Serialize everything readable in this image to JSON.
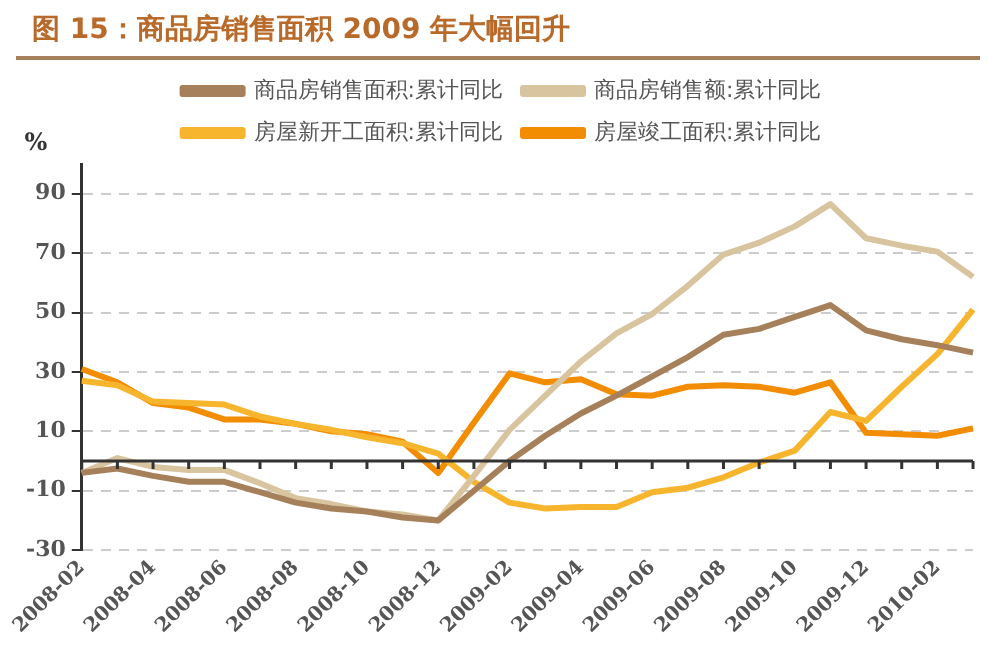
{
  "chart_data": {
    "type": "line",
    "title": "图 15：商品房销售面积 2009 年大幅回升",
    "ylabel": "%",
    "categories": [
      "2008-02",
      null,
      "2008-04",
      null,
      "2008-06",
      null,
      "2008-08",
      null,
      "2008-10",
      null,
      "2008-12",
      null,
      "2009-02",
      null,
      "2009-04",
      null,
      "2009-06",
      null,
      "2009-08",
      null,
      "2009-10",
      null,
      "2009-12",
      null,
      "2010-02",
      null
    ],
    "series": [
      {
        "name": "商品房销售面积:累计同比",
        "color": "#a5805a",
        "values": [
          -4,
          -2.5,
          -5,
          -7,
          -7,
          -10.5,
          -14,
          -16,
          -17,
          -19,
          -20,
          -10,
          0,
          8.5,
          16,
          22,
          28.5,
          35,
          42.5,
          44.5,
          48.5,
          52.5,
          44,
          41,
          39,
          36.5
        ]
      },
      {
        "name": "商品房销售额:累计同比",
        "color": "#d8c59f",
        "values": [
          -4,
          1,
          -2,
          -3,
          -3,
          -7.5,
          -12.5,
          -14.5,
          -17,
          -18,
          -20,
          -5,
          10.5,
          22,
          33.5,
          43,
          49.5,
          59,
          69.5,
          73.5,
          79,
          86.5,
          75,
          72.5,
          70.5,
          62
        ]
      },
      {
        "name": "房屋新开工面积:累计同比",
        "color": "#f7b52e",
        "values": [
          27,
          25.5,
          20,
          19.5,
          19,
          15,
          12.5,
          10.5,
          8,
          6,
          2.5,
          -7,
          -14,
          -16,
          -15.5,
          -15.5,
          -10.5,
          -9,
          -5.5,
          -0.5,
          3.5,
          16.5,
          13.5,
          25,
          36,
          51
        ]
      },
      {
        "name": "房屋竣工面积:累计同比",
        "color": "#f28c00",
        "values": [
          31,
          26.5,
          19.5,
          18,
          14,
          14,
          12.5,
          10,
          9,
          6.5,
          -4,
          13,
          29.5,
          26.5,
          27.5,
          22.5,
          22,
          25,
          25.5,
          25,
          23,
          26.5,
          9.5,
          9,
          8.5,
          11
        ]
      }
    ],
    "ylim": [
      -30,
      100
    ],
    "yticks": [
      -30,
      -10,
      10,
      30,
      50,
      70,
      90
    ],
    "grid": "y",
    "legend": "top",
    "marker": "none",
    "line_style": "solid"
  }
}
